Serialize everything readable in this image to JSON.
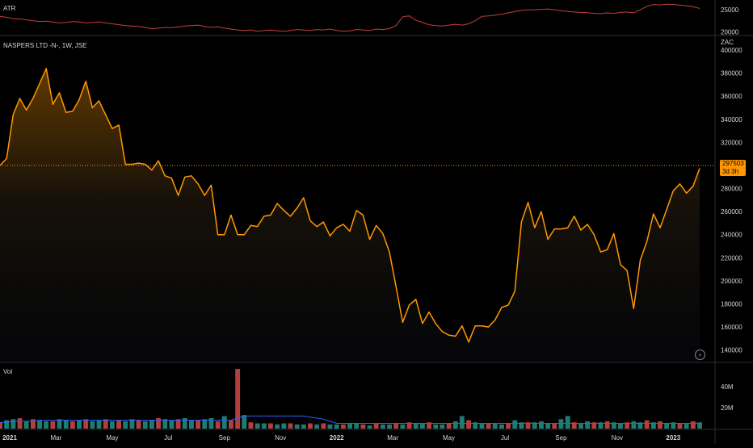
{
  "atr_pane": {
    "title": "ATR",
    "ticks": [
      {
        "value": 25000,
        "label": "25000"
      },
      {
        "value": 20000,
        "label": "20000"
      }
    ]
  },
  "main_pane": {
    "title": "NASPERS LTD -N-, 1W, JSE",
    "currency": "ZAC",
    "last_price": "297503",
    "countdown": "3d 3h",
    "y_ticks": [
      "400000",
      "380000",
      "360000",
      "340000",
      "320000",
      "300000",
      "280000",
      "260000",
      "240000",
      "220000",
      "200000",
      "180000",
      "160000",
      "140000"
    ]
  },
  "volume_pane": {
    "title": "Vol",
    "ticks": [
      "40M",
      "20M"
    ]
  },
  "time_axis": {
    "labels": [
      "2021",
      "Mar",
      "May",
      "Jul",
      "Sep",
      "Nov",
      "2022",
      "Mar",
      "May",
      "Jul",
      "Sep",
      "Nov",
      "2023"
    ]
  },
  "colors": {
    "price_line": "#ff9800",
    "atr_line": "#c2413b",
    "vol_up": "#26a69a",
    "vol_down": "#ef5350",
    "vol_ma": "#2962ff"
  },
  "chart_data": [
    {
      "type": "line",
      "title": "NASPERS LTD -N-, 1W, JSE",
      "ylim": [
        130000,
        400000
      ],
      "series": [
        {
          "values": [
            300000,
            306000,
            344000,
            358000,
            348000,
            358000,
            371000,
            384000,
            353000,
            363000,
            346000,
            347000,
            357000,
            373000,
            350000,
            356000,
            344000,
            332000,
            335000,
            301000,
            301000,
            302000,
            301000,
            296000,
            304000,
            291000,
            289000,
            274000,
            290000,
            291000,
            284000,
            274000,
            283000,
            240000,
            240000,
            257000,
            240000,
            240000,
            248000,
            247000,
            256000,
            257000,
            267000,
            261000,
            256000,
            263000,
            272000,
            252000,
            247000,
            251000,
            239000,
            246000,
            249000,
            243000,
            261000,
            257000,
            236000,
            248000,
            241000,
            225000,
            195000,
            164000,
            179000,
            184000,
            163000,
            173000,
            163000,
            156000,
            153000,
            152000,
            161000,
            147000,
            161000,
            161000,
            160000,
            166000,
            177000,
            179000,
            191000,
            251000,
            268000,
            246000,
            260000,
            236000,
            245000,
            245000,
            246000,
            256000,
            244000,
            249000,
            240000,
            225000,
            227000,
            241000,
            214000,
            209000,
            176000,
            218000,
            234000,
            258000,
            246000,
            262000,
            278000,
            284000,
            276000,
            282000,
            297503
          ]
        }
      ]
    },
    {
      "type": "line",
      "title": "ATR",
      "ylim": [
        19500,
        26500
      ],
      "series": [
        {
          "values": [
            23500,
            23300,
            23000,
            22900,
            22700,
            22500,
            22300,
            22400,
            22200,
            22000,
            22100,
            22300,
            22200,
            22000,
            22100,
            22200,
            22000,
            21800,
            21600,
            21400,
            21300,
            21200,
            21000,
            20700,
            20800,
            21000,
            20900,
            21100,
            21300,
            21400,
            21500,
            21200,
            21000,
            21100,
            20800,
            20600,
            20400,
            20300,
            20400,
            20100,
            20300,
            20400,
            20200,
            20100,
            20300,
            20500,
            20400,
            20300,
            20500,
            20400,
            20600,
            20300,
            20100,
            20200,
            20500,
            20400,
            20300,
            20600,
            20500,
            20700,
            21400,
            23400,
            23600,
            22600,
            22100,
            21600,
            21400,
            21300,
            21500,
            21700,
            21500,
            21800,
            22500,
            23500,
            23600,
            23800,
            24000,
            24300,
            24600,
            24900,
            25000,
            25000,
            25100,
            25200,
            25000,
            24800,
            24600,
            24500,
            24400,
            24300,
            24200,
            24100,
            24300,
            24200,
            24400,
            24500,
            24300,
            25000,
            25800,
            26200,
            26100,
            26300,
            26200,
            26100,
            25900,
            25700,
            25300
          ]
        }
      ]
    },
    {
      "type": "bar",
      "title": "Vol",
      "ylim": [
        0,
        57000000
      ],
      "values": [
        6,
        8,
        9,
        10,
        7,
        9,
        8,
        7,
        7,
        9,
        8,
        7,
        8,
        9,
        7,
        8,
        9,
        7,
        8,
        7,
        9,
        8,
        7,
        8,
        10,
        9,
        8,
        9,
        10,
        8,
        8,
        9,
        10,
        7,
        12,
        8,
        57,
        13,
        6,
        5,
        5,
        5,
        4,
        5,
        5,
        4,
        4,
        5,
        4,
        5,
        4,
        4,
        4,
        5,
        5,
        4,
        3,
        5,
        4,
        4,
        5,
        4,
        6,
        5,
        5,
        6,
        4,
        4,
        5,
        7,
        12,
        8,
        6,
        5,
        5,
        5,
        4,
        5,
        8,
        6,
        6,
        6,
        7,
        5,
        5,
        9,
        12,
        6,
        5,
        7,
        6,
        6,
        7,
        6,
        5,
        6,
        7,
        6,
        8,
        6,
        7,
        5,
        6,
        5,
        5,
        7,
        6
      ],
      "directions": [
        "d",
        "u",
        "u",
        "d",
        "u",
        "d",
        "u",
        "u",
        "d",
        "u",
        "u",
        "d",
        "u",
        "d",
        "u",
        "u",
        "d",
        "u",
        "d",
        "u",
        "u",
        "d",
        "u",
        "u",
        "d",
        "u",
        "u",
        "d",
        "u",
        "u",
        "d",
        "u",
        "u",
        "d",
        "u",
        "d",
        "d",
        "u",
        "d",
        "u",
        "u",
        "d",
        "u",
        "u",
        "d",
        "u",
        "u",
        "d",
        "u",
        "d",
        "u",
        "u",
        "d",
        "u",
        "u",
        "d",
        "u",
        "d",
        "u",
        "u",
        "d",
        "u",
        "d",
        "u",
        "u",
        "d",
        "u",
        "u",
        "d",
        "u",
        "u",
        "d",
        "u",
        "u",
        "d",
        "u",
        "u",
        "d",
        "u",
        "u",
        "d",
        "u",
        "u",
        "u",
        "d",
        "u",
        "u",
        "d",
        "u",
        "u",
        "d",
        "u",
        "d",
        "u",
        "u",
        "d",
        "u",
        "u",
        "d",
        "u",
        "d",
        "u",
        "u",
        "d",
        "u",
        "d",
        "u"
      ],
      "ma": [
        6,
        6,
        7,
        7,
        7,
        7,
        8,
        8,
        8,
        8,
        8,
        8,
        8,
        8,
        8,
        8,
        8,
        8,
        8,
        8,
        8,
        8,
        8,
        8,
        8,
        8,
        8,
        8,
        8,
        8,
        8,
        8,
        8,
        8,
        8,
        8,
        10,
        12,
        12,
        12,
        12,
        12,
        12,
        12,
        12,
        12,
        12,
        11,
        10,
        9,
        7,
        5,
        5,
        5,
        5,
        5,
        5,
        5,
        5,
        5,
        5,
        5,
        5,
        5,
        5,
        5,
        5,
        5,
        5,
        5,
        5,
        5,
        5,
        5,
        5,
        5,
        5,
        5,
        5,
        5,
        5,
        5,
        5,
        5,
        5,
        5,
        5,
        5,
        5,
        5,
        5,
        5,
        5,
        5,
        5,
        5,
        5,
        5,
        5,
        5,
        5,
        5,
        5,
        5,
        5,
        5,
        5
      ]
    }
  ]
}
